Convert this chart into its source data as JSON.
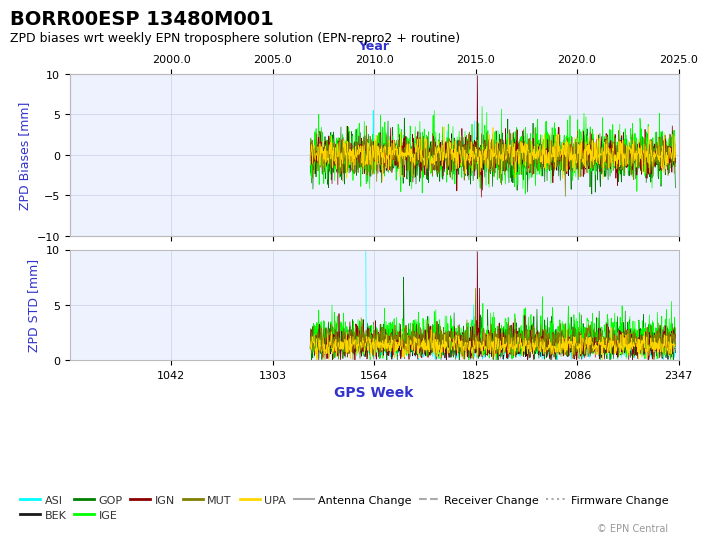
{
  "title": "BORR00ESP 13480M001",
  "subtitle": "ZPD biases wrt weekly EPN troposphere solution (EPN-repro2 + routine)",
  "xlabel_top": "Year",
  "xlabel_bottom": "GPS Week",
  "ylabel_top": "ZPD Biases [mm]",
  "ylabel_bottom": "ZPD STD [mm]",
  "copyright": "© EPN Central",
  "year_ticks": [
    2000.0,
    2005.0,
    2010.0,
    2015.0,
    2020.0,
    2025.0
  ],
  "gps_week_ticks": [
    1042,
    1303,
    1564,
    1825,
    2086,
    2347
  ],
  "gps_week_range": [
    781,
    2347
  ],
  "ylim_bias": [
    -10,
    10
  ],
  "ylim_std": [
    0,
    10
  ],
  "yticks_bias": [
    -10,
    -5,
    0,
    5,
    10
  ],
  "yticks_std": [
    0,
    5,
    10
  ],
  "ac_colors": {
    "ASI": "#00ffff",
    "BEK": "#1a1a1a",
    "GOP": "#008000",
    "IGE": "#00ff00",
    "IGN": "#8b0000",
    "MUT": "#808000",
    "UPA": "#ffd700"
  },
  "legend_entries": [
    "ASI",
    "BEK",
    "GOP",
    "IGE",
    "IGN",
    "MUT",
    "UPA"
  ],
  "legend_extra": [
    {
      "label": "Antenna Change",
      "color": "#aaaaaa",
      "linestyle": "-"
    },
    {
      "label": "Receiver Change",
      "color": "#aaaaaa",
      "linestyle": "--"
    },
    {
      "label": "Firmware Change",
      "color": "#aaaaaa",
      "linestyle": ":"
    }
  ],
  "background_color": "#ffffff",
  "plot_bg_color": "#eef2ff",
  "grid_color": "#c8d0e8",
  "axis_label_color": "#3333cc",
  "title_color": "#000000",
  "subtitle_color": "#000000"
}
